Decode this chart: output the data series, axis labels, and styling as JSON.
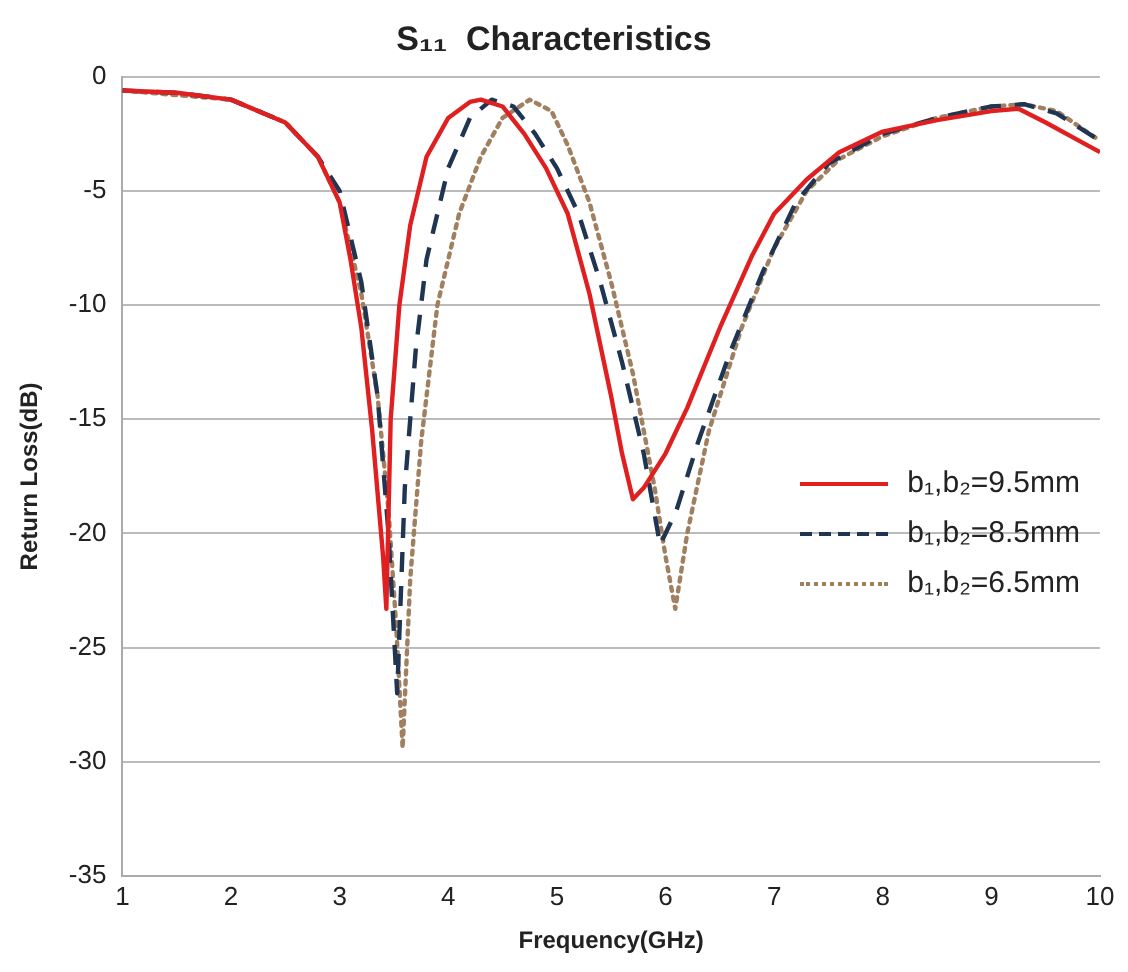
{
  "chart_data": {
    "type": "line",
    "title": "S₁₁  Characteristics",
    "xlabel": "Frequency(GHz)",
    "ylabel": "Return Loss(dB)",
    "xlim": [
      1,
      10
    ],
    "xticks": [
      1,
      2,
      3,
      4,
      5,
      6,
      7,
      8,
      9,
      10
    ],
    "ylim": [
      -35,
      0
    ],
    "yticks": [
      -35,
      -30,
      -25,
      -20,
      -15,
      -10,
      -5,
      0
    ],
    "grid": "y",
    "legend": "right",
    "marker": "none",
    "series": [
      {
        "name": "b₁,b₂=9.5mm",
        "color": "#e02020",
        "line_style": "solid",
        "x": [
          1,
          1.5,
          2,
          2.5,
          2.8,
          3.0,
          3.1,
          3.2,
          3.3,
          3.4,
          3.43,
          3.47,
          3.55,
          3.65,
          3.8,
          4.0,
          4.2,
          4.3,
          4.5,
          4.7,
          4.9,
          5.1,
          5.3,
          5.5,
          5.6,
          5.7,
          5.8,
          6.0,
          6.2,
          6.5,
          6.8,
          7.0,
          7.3,
          7.6,
          8.0,
          8.5,
          9.0,
          9.25,
          9.5,
          10
        ],
        "values": [
          -0.6,
          -0.7,
          -1.0,
          -2.0,
          -3.5,
          -5.5,
          -8,
          -11,
          -15.5,
          -21,
          -23.3,
          -15,
          -10,
          -6.5,
          -3.5,
          -1.8,
          -1.1,
          -1.0,
          -1.3,
          -2.5,
          -4,
          -6,
          -9.5,
          -14,
          -16.5,
          -18.5,
          -18,
          -16.5,
          -14.5,
          -11,
          -7.8,
          -6,
          -4.5,
          -3.3,
          -2.4,
          -1.9,
          -1.5,
          -1.4,
          -2.0,
          -3.3
        ]
      },
      {
        "name": "b₁,b₂=8.5mm",
        "color": "#1f3552",
        "line_style": "dashed",
        "x": [
          1,
          1.5,
          2,
          2.5,
          2.8,
          3.0,
          3.2,
          3.35,
          3.45,
          3.53,
          3.6,
          3.7,
          3.8,
          4.0,
          4.2,
          4.4,
          4.6,
          4.8,
          5.0,
          5.2,
          5.4,
          5.6,
          5.8,
          5.95,
          6.1,
          6.3,
          6.6,
          6.9,
          7.2,
          7.5,
          8.0,
          8.5,
          9.0,
          9.3,
          9.6,
          10
        ],
        "values": [
          -0.6,
          -0.7,
          -1.0,
          -2.0,
          -3.5,
          -5.0,
          -9,
          -14,
          -20,
          -27,
          -18,
          -12,
          -8,
          -4,
          -1.8,
          -1.0,
          -1.3,
          -2.5,
          -4,
          -6,
          -9,
          -12.5,
          -16.5,
          -20.5,
          -19,
          -16,
          -12,
          -8.5,
          -5.5,
          -3.8,
          -2.5,
          -1.8,
          -1.3,
          -1.2,
          -1.6,
          -2.8
        ]
      },
      {
        "name": "b₁,b₂=6.5mm",
        "color": "#a08060",
        "line_style": "dotted",
        "x": [
          1,
          2,
          2.5,
          2.8,
          3.0,
          3.2,
          3.35,
          3.45,
          3.52,
          3.58,
          3.65,
          3.75,
          3.9,
          4.1,
          4.3,
          4.5,
          4.75,
          4.95,
          5.1,
          5.3,
          5.5,
          5.7,
          5.9,
          6.0,
          6.09,
          6.2,
          6.4,
          6.7,
          7.0,
          7.3,
          7.6,
          8.0,
          8.5,
          9.0,
          9.3,
          9.6,
          10
        ],
        "values": [
          -0.6,
          -1.0,
          -2.0,
          -3.5,
          -5.5,
          -9.5,
          -14,
          -19,
          -24,
          -29.4,
          -22,
          -16,
          -10,
          -6,
          -3.5,
          -1.8,
          -1.0,
          -1.5,
          -3,
          -5.5,
          -9,
          -13,
          -18,
          -21,
          -23.3,
          -20,
          -15.5,
          -11,
          -7.5,
          -5,
          -3.6,
          -2.6,
          -1.8,
          -1.3,
          -1.2,
          -1.5,
          -2.8
        ]
      }
    ]
  }
}
